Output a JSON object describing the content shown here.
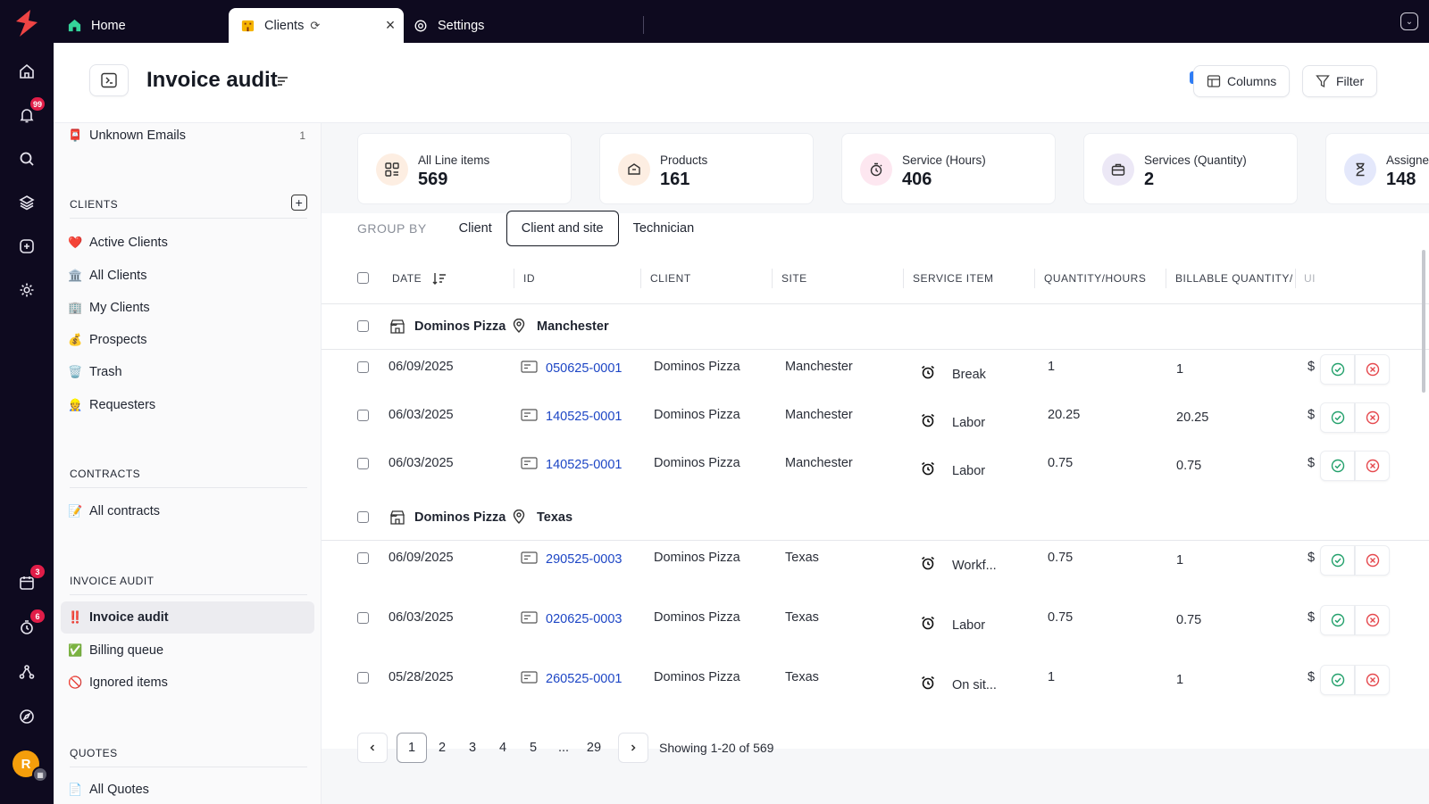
{
  "tabs": [
    {
      "label": "Home",
      "icon": "home-icon"
    },
    {
      "label": "Clients",
      "icon": "building-icon",
      "active": true
    },
    {
      "label": "Settings",
      "icon": "gear-icon"
    }
  ],
  "rail": {
    "notifications_badge": "99",
    "calendar_badge": "3",
    "timer_badge": "6",
    "avatar_initial": "R"
  },
  "header": {
    "title": "Invoice audit",
    "columns_label": "Columns",
    "filter_label": "Filter"
  },
  "sidebar": {
    "unknown_emails": {
      "label": "Unknown Emails",
      "count": "1"
    },
    "clients_section": "CLIENTS",
    "clients": [
      {
        "label": "Active Clients",
        "emoji": "❤️"
      },
      {
        "label": "All Clients",
        "emoji": "🏛️"
      },
      {
        "label": "My Clients",
        "emoji": "🏢"
      },
      {
        "label": "Prospects",
        "emoji": "💰"
      },
      {
        "label": "Trash",
        "emoji": "🗑️"
      },
      {
        "label": "Requesters",
        "emoji": "👷"
      }
    ],
    "contracts_section": "CONTRACTS",
    "contracts": [
      {
        "label": "All contracts",
        "emoji": "📝"
      }
    ],
    "audit_section": "INVOICE AUDIT",
    "audit": [
      {
        "label": "Invoice audit",
        "emoji": "‼️",
        "active": true
      },
      {
        "label": "Billing queue",
        "emoji": "✅"
      },
      {
        "label": "Ignored items",
        "emoji": "🚫"
      }
    ],
    "quotes_section": "QUOTES",
    "quotes": [
      {
        "label": "All Quotes",
        "emoji": "📄"
      }
    ]
  },
  "stats": [
    {
      "label": "All Line items",
      "value": "569",
      "icon": "grid-icon",
      "color": "#fdeee2"
    },
    {
      "label": "Products",
      "value": "161",
      "icon": "box-icon",
      "color": "#fdeee2"
    },
    {
      "label": "Service (Hours)",
      "value": "406",
      "icon": "stopwatch-icon",
      "color": "#fde7f0"
    },
    {
      "label": "Services (Quantity)",
      "value": "2",
      "icon": "briefcase-icon",
      "color": "#ece8f6"
    },
    {
      "label": "Assigne",
      "value": "148",
      "icon": "hourglass-icon",
      "color": "#e4e8fb"
    }
  ],
  "groupby": {
    "label": "GROUP BY",
    "options": [
      "Client",
      "Client and site",
      "Technician"
    ],
    "active": "Client and site"
  },
  "columns": [
    "DATE",
    "ID",
    "CLIENT",
    "SITE",
    "SERVICE ITEM",
    "QUANTITY/HOURS",
    "BILLABLE QUANTITY/H",
    "UI"
  ],
  "groups": [
    {
      "client": "Dominos Pizza",
      "site": "Manchester",
      "rows": [
        {
          "date": "06/09/2025",
          "id": "050625-0001",
          "client": "Dominos Pizza",
          "site": "Manchester",
          "service": "Break",
          "qty": "1",
          "billable": "1",
          "unit": "$"
        },
        {
          "date": "06/03/2025",
          "id": "140525-0001",
          "client": "Dominos Pizza",
          "site": "Manchester",
          "service": "Labor",
          "qty": "20.25",
          "billable": "20.25",
          "unit": "$"
        },
        {
          "date": "06/03/2025",
          "id": "140525-0001",
          "client": "Dominos Pizza",
          "site": "Manchester",
          "service": "Labor",
          "qty": "0.75",
          "billable": "0.75",
          "unit": "$"
        }
      ]
    },
    {
      "client": "Dominos Pizza",
      "site": "Texas",
      "rows": [
        {
          "date": "06/09/2025",
          "id": "290525-0003",
          "client": "Dominos Pizza",
          "site": "Texas",
          "service": "Workf...",
          "qty": "0.75",
          "billable": "1",
          "unit": "$"
        },
        {
          "date": "06/03/2025",
          "id": "020625-0003",
          "client": "Dominos Pizza",
          "site": "Texas",
          "service": "Labor",
          "qty": "0.75",
          "billable": "0.75",
          "unit": "$"
        },
        {
          "date": "05/28/2025",
          "id": "260525-0001",
          "client": "Dominos Pizza",
          "site": "Texas",
          "service": "On sit...",
          "qty": "1",
          "billable": "1",
          "unit": "$"
        }
      ]
    }
  ],
  "pagination": {
    "pages": [
      "1",
      "2",
      "3",
      "4",
      "5",
      "...",
      "29"
    ],
    "current": "1",
    "info": "Showing 1-20 of 569"
  },
  "colors": {
    "rail_bg": "#0e0a1f",
    "link": "#1d46c5",
    "approve": "#22a06b",
    "reject": "#e5484d",
    "logo": "#ef4444"
  }
}
